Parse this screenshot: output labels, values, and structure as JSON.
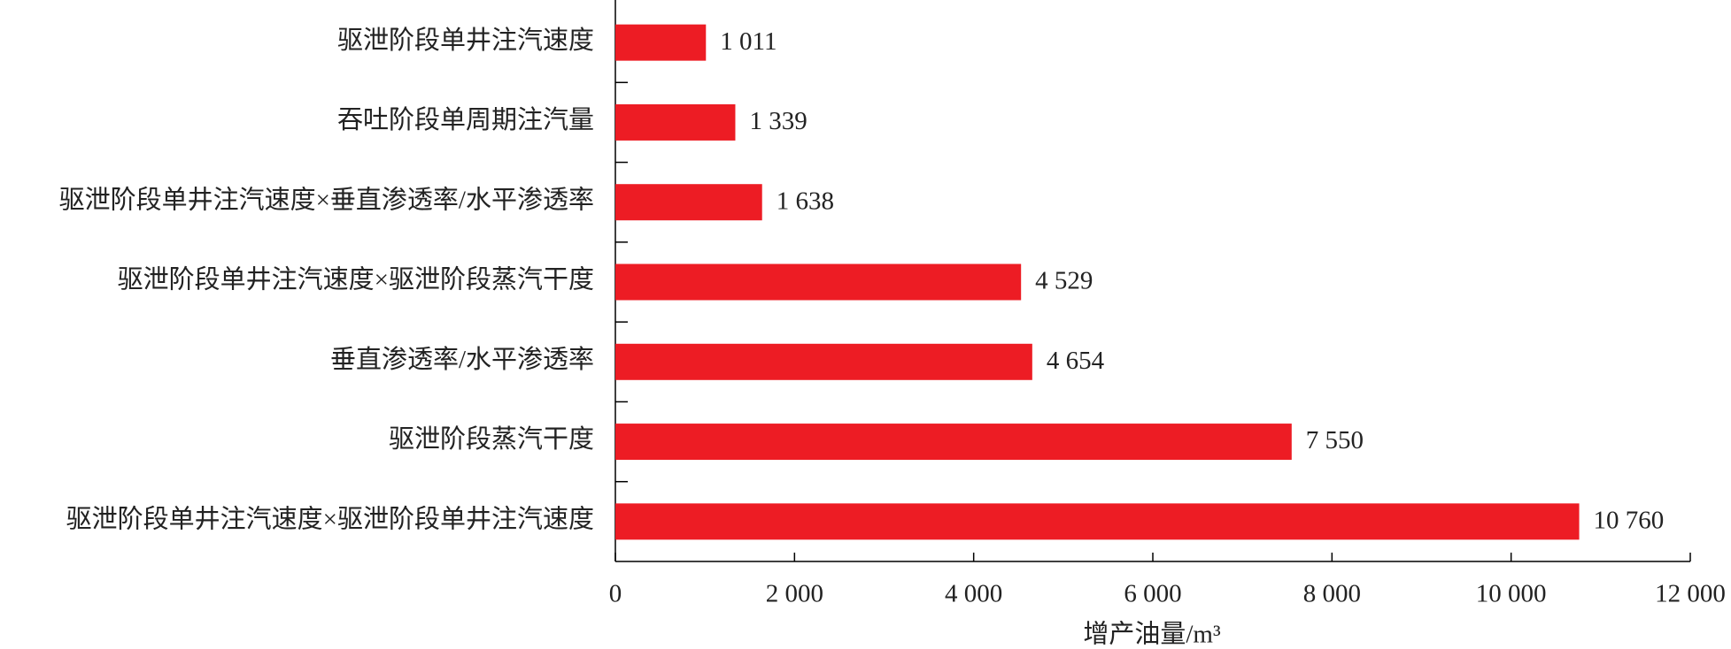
{
  "chart_data": {
    "type": "bar",
    "orientation": "horizontal",
    "categories": [
      "驱泄阶段单井注汽速度",
      "吞吐阶段单周期注汽量",
      "驱泄阶段单井注汽速度×垂直渗透率/水平渗透率",
      "驱泄阶段单井注汽速度×驱泄阶段蒸汽干度",
      "垂直渗透率/水平渗透率",
      "驱泄阶段蒸汽干度",
      "驱泄阶段单井注汽速度×驱泄阶段单井注汽速度"
    ],
    "values": [
      1011,
      1339,
      1638,
      4529,
      4654,
      7550,
      10760
    ],
    "value_labels": [
      "1 011",
      "1 339",
      "1 638",
      "4 529",
      "4 654",
      "7 550",
      "10 760"
    ],
    "color": "#ed1c24",
    "xlabel": "增产油量/m³",
    "xlim": [
      0,
      12000
    ],
    "xticks": [
      0,
      {
        "value": 2000,
        "label": "2 000"
      },
      {
        "value": 4000,
        "label": "4 000"
      },
      {
        "value": 6000,
        "label": "6 000"
      },
      {
        "value": 8000,
        "label": "8 000"
      },
      {
        "value": 10000,
        "label": "10 000"
      },
      {
        "value": 12000,
        "label": "12 000"
      }
    ],
    "grid": false
  }
}
